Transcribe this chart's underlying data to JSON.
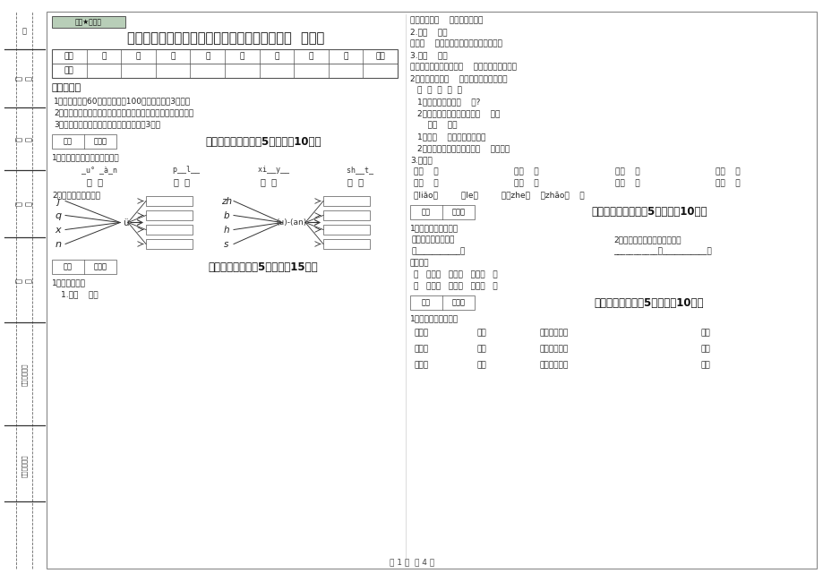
{
  "title": "咸宁市实验小学一年级语文下学期开学检测试卷  附答案",
  "secret_label": "绝密★启用前",
  "bg_color": "#ffffff",
  "table_headers": [
    "题号",
    "一",
    "二",
    "三",
    "四",
    "五",
    "六",
    "七",
    "八",
    "总分"
  ],
  "table_row2": [
    "得分",
    "",
    "",
    "",
    "",
    "",
    "",
    "",
    "",
    ""
  ],
  "exam_notice_title": "考试须知：",
  "exam_notices": [
    "1、考试时间：60分钟，满分为100分（含卷面分3分）。",
    "2、请首先按要求在试卷的指定位置填写您的姓名、班级、学号。",
    "3、不要在试卷上乱写乱画，卷面不整洁扣3分。"
  ],
  "section1_title": "一、拼音部分（每题5分，共计10分）",
  "section1_q1": "1、读一读，把音节填写完整。",
  "pinyin_blanks": [
    "  _u° _à_n",
    "  p__l__",
    "  xi__y__",
    "  sh__t_"
  ],
  "pinyin_chars": [
    "做  饭",
    "飘  落",
    "鲜  艳",
    "身  体"
  ],
  "section1_q2": "2、我会拼，我会写。",
  "left_initials": [
    "j",
    "q",
    "x",
    "n"
  ],
  "left_vowel": "ü",
  "right_initials": [
    "zh",
    "b",
    "h",
    "s"
  ],
  "right_vowel": "(u)-(an)",
  "section2_title": "二、填空题（每题5分，共计15分）",
  "section2_q1": "1、选词填空。",
  "section2_words": "1.欢快    欢笑",
  "right_top_lines": [
    "清清的溪水（    ）地向前流去。",
    "2.轻轻    呼呼",
    "春风（    ）地吹，吹得草绿了，花开了。",
    "3.慢慢    悄悄",
    "爷爷正在屋里看书，我（    ）地关上门看电视。"
  ],
  "section2_q2": "2、根据句子在（    ）里填上正确的字词。",
  "section2_chars_row": "吗  呢  哼  吧  哦",
  "section2_q2_sub": [
    "1、这是怎么回事（    ）?",
    "2、小白兔，我们赶快回家（    ）！",
    "    常常    非常",
    "1、我（    ）看童话故事书。",
    "2、会园里的花很多，开得（    ）美丽。"
  ],
  "section2_q4": "3.组词。",
  "zu_ci_row1_cols": [
    "请（    ）",
    "园（    ）",
    "得（    ）",
    "亲（    ）"
  ],
  "zu_ci_row2_cols": [
    "情（    ）",
    "原（    ）",
    "很（    ）",
    "新（    ）"
  ],
  "zu_ci_row3": "了liǎo（         ）le（         ）着zhe（    ）zhāo（    ）",
  "section3_title": "三、识字写字（每题5分，共计10分）",
  "section3_q1": "1、我会读，也会写。",
  "section3_line1a": "：柳在灯下改作业。",
  "section3_line1b": "2、林冬再也不能粗心大意了。",
  "section3_line2a": "在___________，",
  "section3_line2b": "___________再___________。",
  "section3_q2": "另组词。",
  "section3_words_row1": "（   ）画（   ）以（   ）跳（   ）",
  "section3_words_row2": "（   ）话（   ）队（   ）桃（   ）",
  "section4_title": "四、连一连（每题5分，共计10分）",
  "section4_q1": "1、想一想，连一连。",
  "section4_col1": [
    "暖和的",
    "高高的",
    "雪白的"
  ],
  "section4_col2": [
    "大山",
    "云朵",
    "小草"
  ],
  "section4_col3": [
    "蓝蓝的天空像",
    "闪闪的星星像",
    "灿烂的阳光像"
  ],
  "section4_col4": [
    "钻石",
    "金子",
    "小船"
  ],
  "footer": "第 1 页  共 4 页",
  "gray_box_color": "#b8ceb8",
  "sidebar_labels": [
    "印",
    "考场",
    "姓名",
    "班级",
    "学校",
    "座位（准考）",
    "乡镇（街道）"
  ],
  "sidebar_separators_y": [
    595,
    530,
    460,
    385,
    290,
    175,
    90
  ]
}
